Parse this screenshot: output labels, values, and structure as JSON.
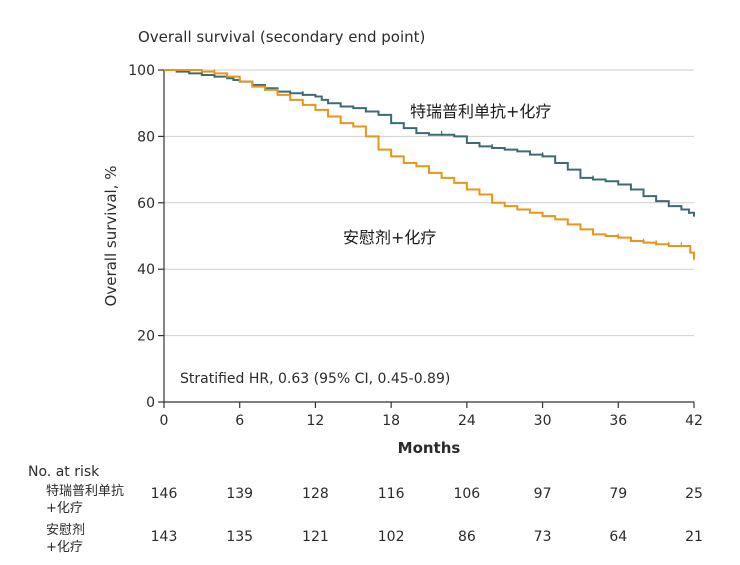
{
  "chart_data": {
    "type": "line",
    "title": "Overall survival (secondary end point)",
    "xlabel": "Months",
    "ylabel": "Overall survival, %",
    "xlim": [
      0,
      42
    ],
    "ylim": [
      0,
      100
    ],
    "xticks": [
      0,
      6,
      12,
      18,
      24,
      30,
      36,
      42
    ],
    "yticks": [
      0,
      20,
      40,
      60,
      80,
      100
    ],
    "grid": "horizontal",
    "annotation": "Stratified HR, 0.63 (95% CI, 0.45-0.89)",
    "series": [
      {
        "name": "特瑞普利单抗+化疗",
        "color": "#3d6b73",
        "x": [
          0,
          1,
          2,
          3,
          4,
          5,
          5.5,
          6,
          7,
          8,
          9,
          10,
          11,
          12,
          12.5,
          13,
          14,
          15,
          16,
          17,
          18,
          19,
          20,
          21,
          22,
          23,
          24,
          25,
          26,
          27,
          28,
          29,
          30,
          31,
          32,
          33,
          34,
          35,
          36,
          37,
          38,
          39,
          40,
          41,
          41.6,
          42
        ],
        "y": [
          100,
          99.5,
          99,
          98.5,
          98,
          97.5,
          97,
          96.5,
          95.5,
          94.5,
          93.5,
          93,
          92.5,
          92,
          91,
          90,
          89,
          88.5,
          87.5,
          86.5,
          84,
          82.5,
          81,
          80.5,
          80.5,
          80,
          78,
          77,
          76.5,
          76,
          75.5,
          74.5,
          74,
          72,
          70,
          67.5,
          67,
          66.5,
          65.5,
          64,
          62,
          60.5,
          59,
          58,
          57,
          56
        ]
      },
      {
        "name": "安慰剂+化疗",
        "color": "#e8951a",
        "x": [
          0,
          1,
          2,
          3,
          4,
          5,
          6,
          7,
          8,
          9,
          10,
          11,
          12,
          13,
          14,
          15,
          16,
          17,
          18,
          19,
          20,
          21,
          22,
          23,
          24,
          25,
          26,
          27,
          28,
          29,
          30,
          31,
          32,
          33,
          34,
          35,
          36,
          37,
          38,
          39,
          40,
          41,
          41.7,
          42
        ],
        "y": [
          100,
          100,
          100,
          99.5,
          99,
          98,
          96.5,
          95,
          94,
          92.5,
          91,
          89.5,
          88,
          86,
          84,
          83,
          80,
          76,
          74,
          72,
          71,
          69,
          67.5,
          66,
          64,
          62.5,
          60,
          59,
          58,
          57,
          56,
          55,
          53.5,
          52,
          50.5,
          50,
          49.5,
          48.5,
          48,
          47.5,
          47,
          47,
          45,
          43
        ]
      }
    ],
    "risk_table": {
      "header": "No. at risk",
      "times": [
        0,
        6,
        12,
        18,
        24,
        30,
        36,
        42
      ],
      "rows": [
        {
          "label_line1": "特瑞普利单抗",
          "label_line2": "+化疗",
          "values": [
            146,
            139,
            128,
            116,
            106,
            97,
            79,
            25
          ]
        },
        {
          "label_line1": "安慰剂",
          "label_line2": "+化疗",
          "values": [
            143,
            135,
            121,
            102,
            86,
            73,
            64,
            21
          ]
        }
      ]
    }
  }
}
